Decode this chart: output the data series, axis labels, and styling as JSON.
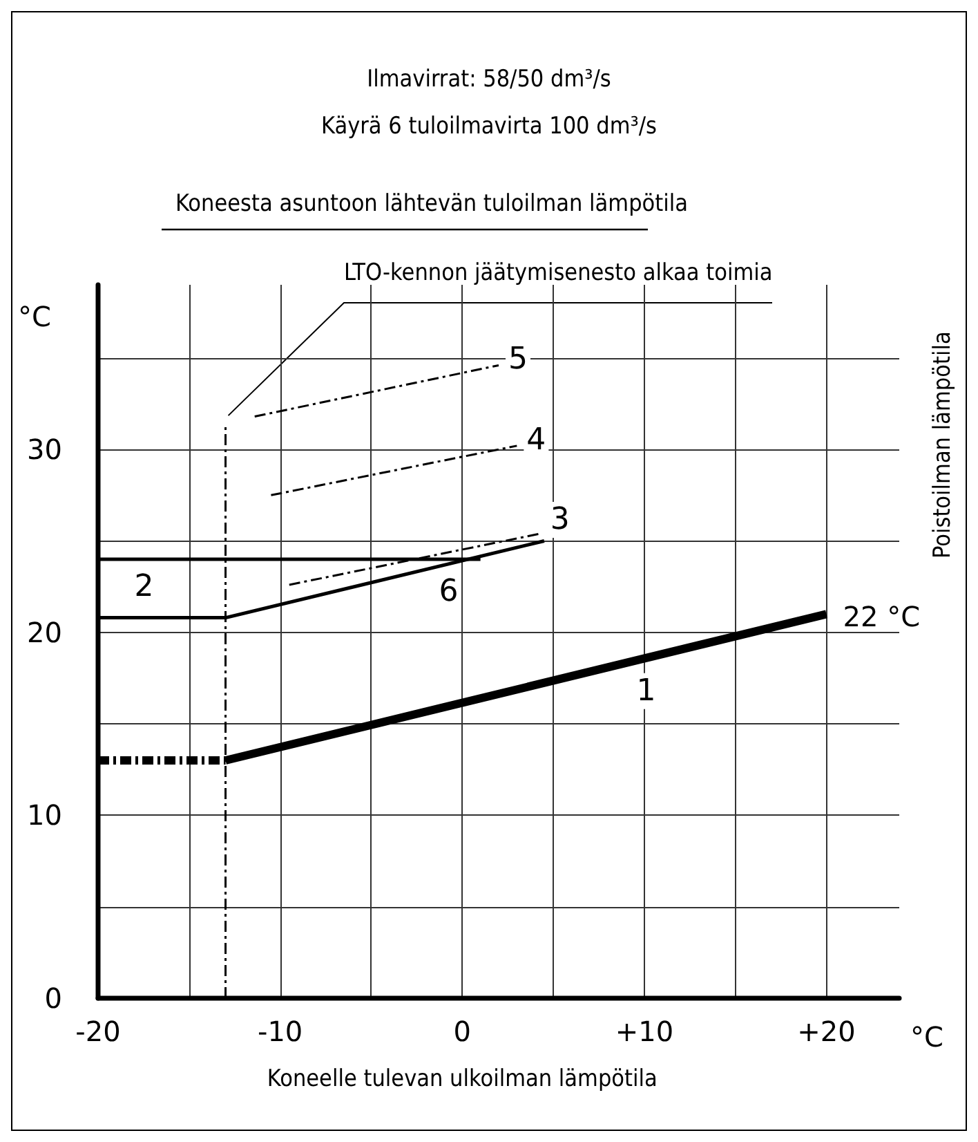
{
  "chart_data": {
    "type": "line",
    "title": "Ilmavirrat: 58/50 dm³/s",
    "subtitle": "Käyrä 6 tuloilmavirta 100 dm³/s",
    "xlabel": "Koneelle tulevan ulkoilman lämpötila",
    "ylabel": "Koneesta asuntoon lähtevän tuloilman lämpötila",
    "xlim": [
      -20,
      24
    ],
    "ylim": [
      0,
      39
    ],
    "xticks": [
      -20,
      {
        "value": -15,
        "label": null
      },
      -10,
      {
        "value": -5,
        "label": null
      },
      0,
      {
        "value": 5,
        "label": null
      },
      {
        "value": 10,
        "label": "+10"
      },
      {
        "value": 15,
        "label": null
      },
      {
        "value": 20,
        "label": "+20"
      }
    ],
    "yticks": [
      0,
      {
        "value": 5,
        "label": null
      },
      10,
      {
        "value": 15,
        "label": null
      },
      20,
      {
        "value": 25,
        "label": null
      },
      30,
      {
        "value": 35,
        "label": null
      }
    ],
    "grid": true,
    "legend": false,
    "series": [
      {
        "name": "1",
        "color": "#000000",
        "x": [
          -13,
          20
        ],
        "values": [
          13,
          21
        ]
      },
      {
        "color": "#000000",
        "x": [
          -20,
          -13
        ],
        "values": [
          13,
          13
        ],
        "line_style": "dashed"
      },
      {
        "name": "2",
        "color": "#000000",
        "x": [
          -20,
          1
        ],
        "values": [
          24,
          24
        ]
      },
      {
        "name": "6",
        "color": "#000000",
        "x": [
          -20,
          -13,
          4.5
        ],
        "values": [
          20.8,
          20.8,
          25
        ]
      },
      {
        "name": "3",
        "color": "#000000",
        "x": [
          -9.5,
          4.3
        ],
        "values": [
          22.6,
          25.4
        ],
        "line_style": "dashed"
      },
      {
        "name": "4",
        "color": "#000000",
        "x": [
          -10.5,
          3
        ],
        "values": [
          27.5,
          30.2
        ],
        "line_style": "dashed"
      },
      {
        "name": "5",
        "color": "#000000",
        "x": [
          -11.4,
          2
        ],
        "values": [
          31.8,
          34.6
        ],
        "line_style": "dashed"
      },
      {
        "color": "#000000",
        "x": [
          -13,
          -13
        ],
        "values": [
          0,
          31.4
        ],
        "line_style": "dashed"
      }
    ],
    "annotations": [
      {
        "text": "LTO-kennon jäätymisenesto alkaa toimia",
        "x": -13,
        "y": 31.4
      },
      "Poistoilman lämpötila",
      {
        "text": "22 °C",
        "x": 20,
        "y": 21
      },
      "°C",
      "°C"
    ]
  }
}
